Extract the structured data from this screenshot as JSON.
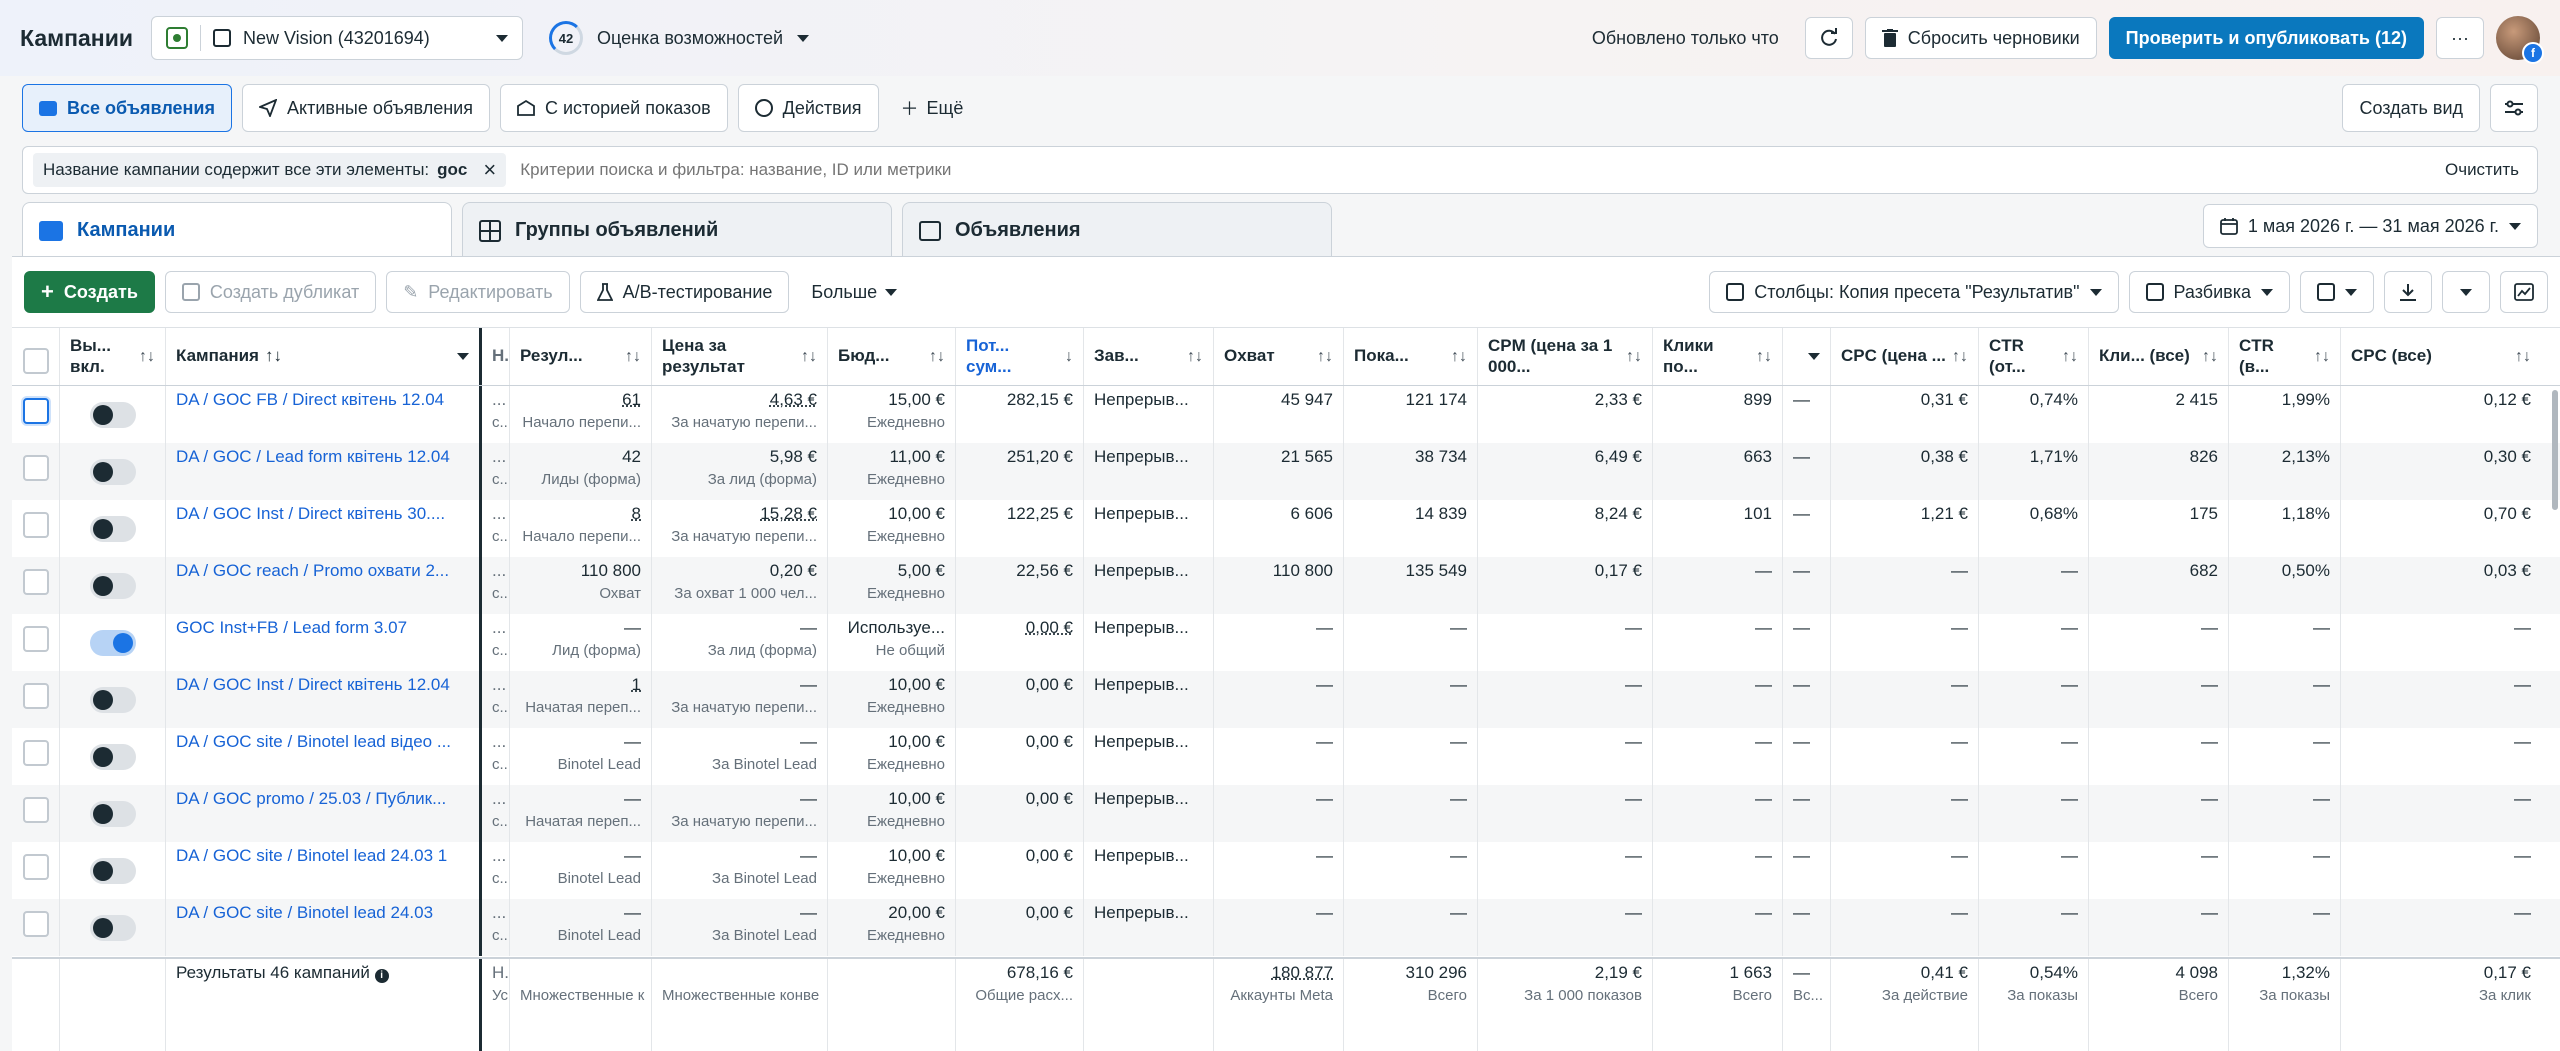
{
  "topbar": {
    "title": "Кампании",
    "account_name": "New Vision (43201694)",
    "score": "42",
    "score_label": "Оценка возможностей",
    "updated": "Обновлено только что",
    "reset_label": "Сбросить черновики",
    "publish_label": "Проверить и опубликовать (12)",
    "more": "···"
  },
  "views": {
    "tabs": [
      "Все объявления",
      "Активные объявления",
      "С историей показов",
      "Действия"
    ],
    "more": "Ещё",
    "create_view": "Создать вид"
  },
  "filter": {
    "chip_label": "Название кампании содержит все эти элементы:",
    "chip_value": "goc",
    "placeholder": "Критерии поиска и фильтра: название, ID или метрики",
    "clear": "Очистить"
  },
  "level_tabs": [
    "Кампании",
    "Группы объявлений",
    "Объявления"
  ],
  "date_range": "1 мая 2026 г. — 31 мая 2026 г.",
  "toolbar": {
    "create": "Создать",
    "duplicate": "Создать дубликат",
    "edit": "Редактировать",
    "ab_test": "A/B-тестирование",
    "more": "Больше",
    "columns": "Столбцы: Копия пресета \"Результатив\"",
    "breakdown": "Разбивка"
  },
  "headers": {
    "toggle": "Вы... вкл.",
    "name": "Кампания",
    "hidden": "Н...",
    "results": "Резул...",
    "cost_per_result": "Цена за результат",
    "budget": "Бюд...",
    "spent": "Пот... сум...",
    "schedule": "Зав...",
    "reach": "Охват",
    "impressions": "Пока...",
    "cpm": "CPM (цена за 1 000...",
    "clicks": "Клики по...",
    "dash": "",
    "cpc": "CPC (цена ...",
    "ctr": "CTR (от...",
    "clicks_all": "Кли... (все)",
    "ctr_all": "CTR (в...",
    "cpc_all": "CPC (все)"
  },
  "rows": [
    {
      "on": false,
      "name": "DA / GOC FB / Direct квітень 12.04",
      "hid": "...",
      "hid2": "с...",
      "res": "61",
      "res_sub": "Начало перепи...",
      "cpr": "4,63 €",
      "cpr_sub": "За начатую перепи...",
      "budget": "15,00 €",
      "budget_sub": "Ежедневно",
      "spent": "282,15 €",
      "sched": "Непрерыв...",
      "reach": "45 947",
      "impr": "121 174",
      "cpm": "2,33 €",
      "clicks": "899",
      "dash": "—",
      "cpc": "0,31 €",
      "ctr": "0,74%",
      "clkall": "2 415",
      "ctrall": "1,99%",
      "cpcall": "0,12 €"
    },
    {
      "on": false,
      "name": "DA / GOC / Lead form квітень 12.04",
      "hid": "...",
      "hid2": "с...",
      "res": "42",
      "res_sub": "Лиды (форма)",
      "cpr": "5,98 €",
      "cpr_sub": "За лид (форма)",
      "budget": "11,00 €",
      "budget_sub": "Ежедневно",
      "spent": "251,20 €",
      "sched": "Непрерыв...",
      "reach": "21 565",
      "impr": "38 734",
      "cpm": "6,49 €",
      "clicks": "663",
      "dash": "—",
      "cpc": "0,38 €",
      "ctr": "1,71%",
      "clkall": "826",
      "ctrall": "2,13%",
      "cpcall": "0,30 €"
    },
    {
      "on": false,
      "name": "DA / GOC Inst / Direct квітень 30....",
      "hid": "...",
      "hid2": "с...",
      "res": "8",
      "res_sub": "Начало перепи...",
      "cpr": "15,28 €",
      "cpr_sub": "За начатую перепи...",
      "budget": "10,00 €",
      "budget_sub": "Ежедневно",
      "spent": "122,25 €",
      "sched": "Непрерыв...",
      "reach": "6 606",
      "impr": "14 839",
      "cpm": "8,24 €",
      "clicks": "101",
      "dash": "—",
      "cpc": "1,21 €",
      "ctr": "0,68%",
      "clkall": "175",
      "ctrall": "1,18%",
      "cpcall": "0,70 €"
    },
    {
      "on": false,
      "name": "DA / GOC reach / Promo охвати 2...",
      "hid": "...",
      "hid2": "с...",
      "res": "110 800",
      "res_sub": "Охват",
      "cpr": "0,20 €",
      "cpr_sub": "За охват 1 000 чел...",
      "budget": "5,00 €",
      "budget_sub": "Ежедневно",
      "spent": "22,56 €",
      "sched": "Непрерыв...",
      "reach": "110 800",
      "impr": "135 549",
      "cpm": "0,17 €",
      "clicks": "—",
      "dash": "—",
      "cpc": "—",
      "ctr": "—",
      "clkall": "682",
      "ctrall": "0,50%",
      "cpcall": "0,03 €"
    },
    {
      "on": true,
      "name": "GOC Inst+FB / Lead form 3.07",
      "hid": "...",
      "hid2": "с...",
      "res": "—",
      "res_sub": "Лид (форма)",
      "cpr": "—",
      "cpr_sub": "За лид (форма)",
      "budget": "Используе...",
      "budget_sub": "Не общий",
      "spent": "0,00 €",
      "sched": "Непрерыв...",
      "reach": "—",
      "impr": "—",
      "cpm": "—",
      "clicks": "—",
      "dash": "—",
      "cpc": "—",
      "ctr": "—",
      "clkall": "—",
      "ctrall": "—",
      "cpcall": "—"
    },
    {
      "on": false,
      "name": "DA / GOC Inst / Direct квітень 12.04",
      "hid": "...",
      "hid2": "с...",
      "res": "1",
      "res_sub": "Начатая переп...",
      "cpr": "—",
      "cpr_sub": "За начатую перепи...",
      "budget": "10,00 €",
      "budget_sub": "Ежедневно",
      "spent": "0,00 €",
      "sched": "Непрерыв...",
      "reach": "—",
      "impr": "—",
      "cpm": "—",
      "clicks": "—",
      "dash": "—",
      "cpc": "—",
      "ctr": "—",
      "clkall": "—",
      "ctrall": "—",
      "cpcall": "—"
    },
    {
      "on": false,
      "name": "DA / GOC site / Binotel lead відео ...",
      "hid": "...",
      "hid2": "с...",
      "res": "—",
      "res_sub": "Binotel Lead",
      "cpr": "—",
      "cpr_sub": "За Binotel Lead",
      "budget": "10,00 €",
      "budget_sub": "Ежедневно",
      "spent": "0,00 €",
      "sched": "Непрерыв...",
      "reach": "—",
      "impr": "—",
      "cpm": "—",
      "clicks": "—",
      "dash": "—",
      "cpc": "—",
      "ctr": "—",
      "clkall": "—",
      "ctrall": "—",
      "cpcall": "—"
    },
    {
      "on": false,
      "name": "DA / GOC promo / 25.03 / Публик...",
      "hid": "...",
      "hid2": "с...",
      "res": "—",
      "res_sub": "Начатая переп...",
      "cpr": "—",
      "cpr_sub": "За начатую перепи...",
      "budget": "10,00 €",
      "budget_sub": "Ежедневно",
      "spent": "0,00 €",
      "sched": "Непрерыв...",
      "reach": "—",
      "impr": "—",
      "cpm": "—",
      "clicks": "—",
      "dash": "—",
      "cpc": "—",
      "ctr": "—",
      "clkall": "—",
      "ctrall": "—",
      "cpcall": "—"
    },
    {
      "on": false,
      "name": "DA / GOC site / Binotel lead 24.03 1",
      "hid": "...",
      "hid2": "с...",
      "res": "—",
      "res_sub": "Binotel Lead",
      "cpr": "—",
      "cpr_sub": "За Binotel Lead",
      "budget": "10,00 €",
      "budget_sub": "Ежедневно",
      "spent": "0,00 €",
      "sched": "Непрерыв...",
      "reach": "—",
      "impr": "—",
      "cpm": "—",
      "clicks": "—",
      "dash": "—",
      "cpc": "—",
      "ctr": "—",
      "clkall": "—",
      "ctrall": "—",
      "cpcall": "—"
    },
    {
      "on": false,
      "name": "DA / GOC site / Binotel lead 24.03",
      "hid": "...",
      "hid2": "с...",
      "res": "—",
      "res_sub": "Binotel Lead",
      "cpr": "—",
      "cpr_sub": "За Binotel Lead",
      "budget": "20,00 €",
      "budget_sub": "Ежедневно",
      "spent": "0,00 €",
      "sched": "Непрерыв...",
      "reach": "—",
      "impr": "—",
      "cpm": "—",
      "clicks": "—",
      "dash": "—",
      "cpc": "—",
      "ctr": "—",
      "clkall": "—",
      "ctrall": "—",
      "cpcall": "—"
    }
  ],
  "footer": {
    "label": "Результаты 46 кампаний",
    "hid": "Н...",
    "hid2": "Ус...",
    "res_sub": "Множественные к",
    "cpr_sub": "Множественные конве",
    "spent": "678,16 €",
    "spent_sub": "Общие расх...",
    "reach": "180 877",
    "reach_sub": "Аккаунты Meta",
    "impr": "310 296",
    "impr_sub": "Всего",
    "cpm": "2,19 €",
    "cpm_sub": "За 1 000 показов",
    "clicks": "1 663",
    "clicks_sub": "Всего",
    "dash": "—",
    "dash_sub": "Вс...",
    "cpc": "0,41 €",
    "cpc_sub": "За действие",
    "ctr": "0,54%",
    "ctr_sub": "За показы",
    "clkall": "4 098",
    "clkall_sub": "Всего",
    "ctrall": "1,32%",
    "ctrall_sub": "За показы",
    "cpcall": "0,17 €",
    "cpcall_sub": "За клик"
  },
  "colors": {
    "accent": "#1b74e4",
    "primary_button": "#0a78be",
    "create_button": "#1d7a47",
    "link": "#1763d6"
  }
}
